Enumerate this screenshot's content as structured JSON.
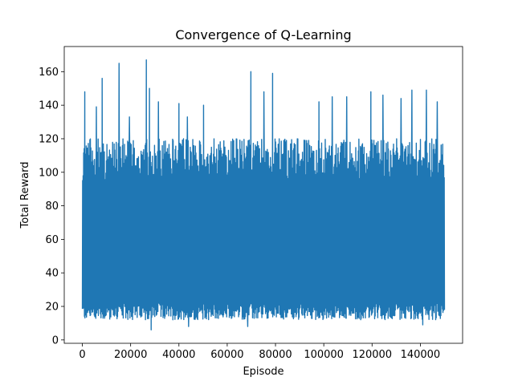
{
  "chart_data": {
    "type": "line",
    "title": "Convergence of Q-Learning",
    "xlabel": "Episode",
    "ylabel": "Total Reward",
    "xlim": [
      -7500,
      157500
    ],
    "ylim": [
      -2,
      175
    ],
    "xticks": [
      0,
      20000,
      40000,
      60000,
      80000,
      100000,
      120000,
      140000
    ],
    "yticks": [
      0,
      20,
      40,
      60,
      80,
      100,
      120,
      140,
      160
    ],
    "grid": false,
    "legend": "none",
    "series_color": "#1f77b4",
    "series": [
      {
        "x_start": 0,
        "x_end": 150000,
        "typical_range": [
          12,
          120
        ],
        "overall_min": 6,
        "overall_max": 167,
        "peaks": [
          {
            "x": 1000,
            "y": 148
          },
          {
            "x": 5800,
            "y": 139
          },
          {
            "x": 8200,
            "y": 156
          },
          {
            "x": 15200,
            "y": 165
          },
          {
            "x": 19500,
            "y": 133
          },
          {
            "x": 26500,
            "y": 167
          },
          {
            "x": 27800,
            "y": 150
          },
          {
            "x": 31500,
            "y": 142
          },
          {
            "x": 40000,
            "y": 141
          },
          {
            "x": 43500,
            "y": 133
          },
          {
            "x": 50200,
            "y": 140
          },
          {
            "x": 69800,
            "y": 160
          },
          {
            "x": 75200,
            "y": 148
          },
          {
            "x": 78800,
            "y": 159
          },
          {
            "x": 98000,
            "y": 142
          },
          {
            "x": 103500,
            "y": 145
          },
          {
            "x": 109500,
            "y": 145
          },
          {
            "x": 119500,
            "y": 148
          },
          {
            "x": 124500,
            "y": 146
          },
          {
            "x": 132000,
            "y": 144
          },
          {
            "x": 136500,
            "y": 149
          },
          {
            "x": 142500,
            "y": 149
          },
          {
            "x": 147000,
            "y": 142
          }
        ],
        "troughs": [
          {
            "x": 28500,
            "y": 6
          },
          {
            "x": 44000,
            "y": 8
          },
          {
            "x": 68500,
            "y": 8
          },
          {
            "x": 141000,
            "y": 9
          }
        ]
      }
    ]
  }
}
